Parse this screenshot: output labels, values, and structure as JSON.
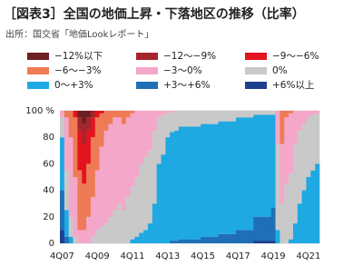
{
  "chart_data": {
    "type": "stacked_bar",
    "title": "［図表3］全国の地価上昇・下落地区の推移（比率）",
    "subtitle": "出所：国交省「地価Lookレポート」",
    "categories": [
      "4Q07",
      null,
      null,
      null,
      null,
      null,
      null,
      null,
      "4Q09",
      null,
      null,
      null,
      null,
      null,
      null,
      null,
      "4Q11",
      null,
      null,
      null,
      null,
      null,
      null,
      null,
      "4Q13",
      null,
      null,
      null,
      null,
      null,
      null,
      null,
      "4Q15",
      null,
      null,
      null,
      null,
      null,
      null,
      null,
      "4Q17",
      null,
      null,
      null,
      null,
      null,
      null,
      null,
      "4Q19",
      null,
      null,
      null,
      null,
      null,
      null,
      null,
      "4Q21",
      null,
      null
    ],
    "series": [
      {
        "name": "+6%以上",
        "color": "#1c3f8f",
        "values": [
          10,
          0,
          0,
          0,
          0,
          0,
          0,
          0,
          0,
          0,
          0,
          0,
          0,
          0,
          0,
          0,
          0,
          0,
          0,
          0,
          0,
          0,
          0,
          0,
          0,
          0,
          0,
          0,
          0,
          0,
          0,
          0,
          0,
          0,
          0,
          0,
          0,
          0,
          0,
          0,
          0,
          0,
          0,
          0,
          2,
          2,
          2,
          2,
          2,
          0,
          0,
          0,
          0,
          0,
          0,
          0,
          0,
          0,
          0
        ]
      },
      {
        "name": "+3〜+6%",
        "color": "#1f6fb8",
        "values": [
          30,
          5,
          0,
          0,
          0,
          0,
          0,
          0,
          0,
          0,
          0,
          0,
          0,
          0,
          0,
          0,
          0,
          0,
          0,
          0,
          0,
          0,
          0,
          0,
          0,
          2,
          2,
          3,
          3,
          3,
          3,
          3,
          5,
          5,
          5,
          5,
          7,
          7,
          7,
          7,
          10,
          10,
          10,
          10,
          18,
          18,
          18,
          18,
          25,
          0,
          0,
          0,
          0,
          0,
          0,
          0,
          0,
          0,
          0
        ]
      },
      {
        "name": "0〜+3%",
        "color": "#1ea9e3",
        "values": [
          40,
          20,
          5,
          0,
          0,
          0,
          0,
          0,
          0,
          0,
          0,
          0,
          0,
          0,
          0,
          0,
          3,
          5,
          8,
          10,
          15,
          30,
          60,
          67,
          80,
          82,
          83,
          85,
          85,
          85,
          85,
          85,
          85,
          85,
          85,
          85,
          85,
          85,
          85,
          85,
          85,
          85,
          85,
          85,
          77,
          77,
          77,
          77,
          70,
          10,
          0,
          0,
          3,
          15,
          30,
          40,
          50,
          55,
          60
        ]
      },
      {
        "name": "0%",
        "color": "#c9c9c9",
        "values": [
          15,
          30,
          15,
          5,
          0,
          0,
          0,
          5,
          10,
          13,
          15,
          20,
          25,
          30,
          25,
          35,
          40,
          45,
          52,
          55,
          55,
          55,
          35,
          30,
          18,
          15,
          15,
          12,
          12,
          12,
          12,
          12,
          10,
          10,
          10,
          10,
          8,
          8,
          8,
          8,
          5,
          5,
          5,
          5,
          3,
          3,
          3,
          3,
          3,
          65,
          30,
          45,
          50,
          60,
          55,
          50,
          45,
          42,
          38
        ]
      },
      {
        "name": "−3〜0%",
        "color": "#f4a7c9",
        "values": [
          5,
          40,
          60,
          45,
          10,
          10,
          20,
          30,
          45,
          60,
          70,
          70,
          70,
          65,
          65,
          60,
          55,
          50,
          40,
          35,
          30,
          15,
          5,
          3,
          2,
          1,
          0,
          0,
          0,
          0,
          0,
          0,
          0,
          0,
          0,
          0,
          0,
          0,
          0,
          0,
          0,
          0,
          0,
          0,
          0,
          0,
          0,
          0,
          0,
          25,
          45,
          50,
          45,
          25,
          15,
          10,
          5,
          3,
          2
        ]
      },
      {
        "name": "−6〜−3%",
        "color": "#ee7b56",
        "values": [
          0,
          5,
          20,
          45,
          45,
          35,
          40,
          45,
          40,
          25,
          15,
          10,
          5,
          5,
          10,
          5,
          2,
          0,
          0,
          0,
          0,
          0,
          0,
          0,
          0,
          0,
          0,
          0,
          0,
          0,
          0,
          0,
          0,
          0,
          0,
          0,
          0,
          0,
          0,
          0,
          0,
          0,
          0,
          0,
          0,
          0,
          0,
          0,
          0,
          0,
          25,
          5,
          2,
          0,
          0,
          0,
          0,
          0,
          0
        ]
      },
      {
        "name": "−9〜−6%",
        "color": "#e3141f",
        "values": [
          0,
          0,
          0,
          5,
          30,
          30,
          25,
          15,
          5,
          2,
          0,
          0,
          0,
          0,
          0,
          0,
          0,
          0,
          0,
          0,
          0,
          0,
          0,
          0,
          0,
          0,
          0,
          0,
          0,
          0,
          0,
          0,
          0,
          0,
          0,
          0,
          0,
          0,
          0,
          0,
          0,
          0,
          0,
          0,
          0,
          0,
          0,
          0,
          0,
          0,
          0,
          0,
          0,
          0,
          0,
          0,
          0,
          0,
          0
        ]
      },
      {
        "name": "−12〜−9%",
        "color": "#a4262c",
        "values": [
          0,
          0,
          0,
          0,
          10,
          15,
          10,
          5,
          0,
          0,
          0,
          0,
          0,
          0,
          0,
          0,
          0,
          0,
          0,
          0,
          0,
          0,
          0,
          0,
          0,
          0,
          0,
          0,
          0,
          0,
          0,
          0,
          0,
          0,
          0,
          0,
          0,
          0,
          0,
          0,
          0,
          0,
          0,
          0,
          0,
          0,
          0,
          0,
          0,
          0,
          0,
          0,
          0,
          0,
          0,
          0,
          0,
          0,
          0
        ]
      },
      {
        "name": "−12%以下",
        "color": "#6e1f22",
        "values": [
          0,
          0,
          0,
          0,
          5,
          10,
          5,
          0,
          0,
          0,
          0,
          0,
          0,
          0,
          0,
          0,
          0,
          0,
          0,
          0,
          0,
          0,
          0,
          0,
          0,
          0,
          0,
          0,
          0,
          0,
          0,
          0,
          0,
          0,
          0,
          0,
          0,
          0,
          0,
          0,
          0,
          0,
          0,
          0,
          0,
          0,
          0,
          0,
          0,
          0,
          0,
          0,
          0,
          0,
          0,
          0,
          0,
          0,
          0
        ]
      }
    ],
    "ylim": [
      0,
      100
    ],
    "yticks": [
      0,
      20,
      40,
      60,
      80,
      {
        "value": 100,
        "label": "100 %"
      }
    ],
    "grid": true
  }
}
